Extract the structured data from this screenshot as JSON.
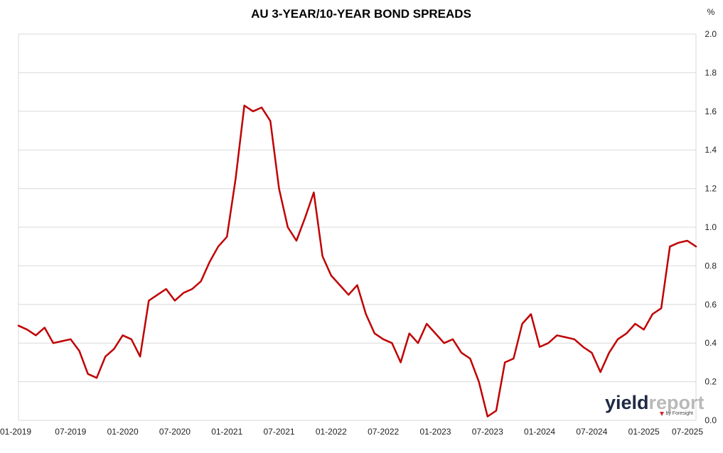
{
  "chart_data": {
    "type": "line",
    "title": "AU 3-YEAR/10-YEAR BOND SPREADS",
    "unit_label": "%",
    "xlabel": "",
    "ylabel": "",
    "ylim": [
      0.0,
      2.0
    ],
    "y_ticks": [
      "0.0",
      "0.2",
      "0.4",
      "0.6",
      "0.8",
      "1.0",
      "1.2",
      "1.4",
      "1.6",
      "1.8",
      "2.0"
    ],
    "x_ticks": [
      "01-2019",
      "07-2019",
      "01-2020",
      "07-2020",
      "01-2021",
      "07-2021",
      "01-2022",
      "07-2022",
      "01-2023",
      "07-2023",
      "01-2024",
      "07-2024",
      "01-2025",
      "07-2025"
    ],
    "grid": true,
    "legend": "none",
    "series_color": "#c00000",
    "series": [
      {
        "x": [
          "2019-01",
          "2019-02",
          "2019-03",
          "2019-04",
          "2019-05",
          "2019-06",
          "2019-07",
          "2019-08",
          "2019-09",
          "2019-10",
          "2019-11",
          "2019-12",
          "2020-01",
          "2020-02",
          "2020-03",
          "2020-04",
          "2020-05",
          "2020-06",
          "2020-07",
          "2020-08",
          "2020-09",
          "2020-10",
          "2020-11",
          "2020-12",
          "2021-01",
          "2021-02",
          "2021-03",
          "2021-04",
          "2021-05",
          "2021-06",
          "2021-07",
          "2021-08",
          "2021-09",
          "2021-10",
          "2021-11",
          "2021-12",
          "2022-01",
          "2022-02",
          "2022-03",
          "2022-04",
          "2022-05",
          "2022-06",
          "2022-07",
          "2022-08",
          "2022-09",
          "2022-10",
          "2022-11",
          "2022-12",
          "2023-01",
          "2023-02",
          "2023-03",
          "2023-04",
          "2023-05",
          "2023-06",
          "2023-07",
          "2023-08",
          "2023-09",
          "2023-10",
          "2023-11",
          "2023-12",
          "2024-01",
          "2024-02",
          "2024-03",
          "2024-04",
          "2024-05",
          "2024-06",
          "2024-07",
          "2024-08",
          "2024-09",
          "2024-10",
          "2024-11",
          "2024-12",
          "2025-01",
          "2025-02",
          "2025-03",
          "2025-04",
          "2025-05",
          "2025-06",
          "2025-07"
        ],
        "values": [
          0.49,
          0.47,
          0.44,
          0.48,
          0.4,
          0.41,
          0.42,
          0.36,
          0.24,
          0.22,
          0.33,
          0.37,
          0.44,
          0.42,
          0.33,
          0.62,
          0.65,
          0.68,
          0.62,
          0.66,
          0.68,
          0.72,
          0.82,
          0.9,
          0.95,
          1.25,
          1.63,
          1.6,
          1.62,
          1.55,
          1.2,
          1.0,
          0.93,
          1.05,
          1.18,
          0.85,
          0.75,
          0.7,
          0.65,
          0.7,
          0.55,
          0.45,
          0.42,
          0.4,
          0.3,
          0.45,
          0.4,
          0.5,
          0.45,
          0.4,
          0.42,
          0.35,
          0.32,
          0.2,
          0.02,
          0.05,
          0.3,
          0.32,
          0.5,
          0.55,
          0.38,
          0.4,
          0.44,
          0.43,
          0.42,
          0.38,
          0.35,
          0.25,
          0.35,
          0.42,
          0.45,
          0.5,
          0.47,
          0.55,
          0.58,
          0.9,
          0.92,
          0.93,
          0.9
        ]
      }
    ]
  },
  "logo": {
    "yield_text": "yield",
    "report_text": "report",
    "byline": "by Foresight",
    "yield_color": "#1f2a44",
    "report_color": "#b9b9b9",
    "marker_color": "#d12a2a"
  }
}
